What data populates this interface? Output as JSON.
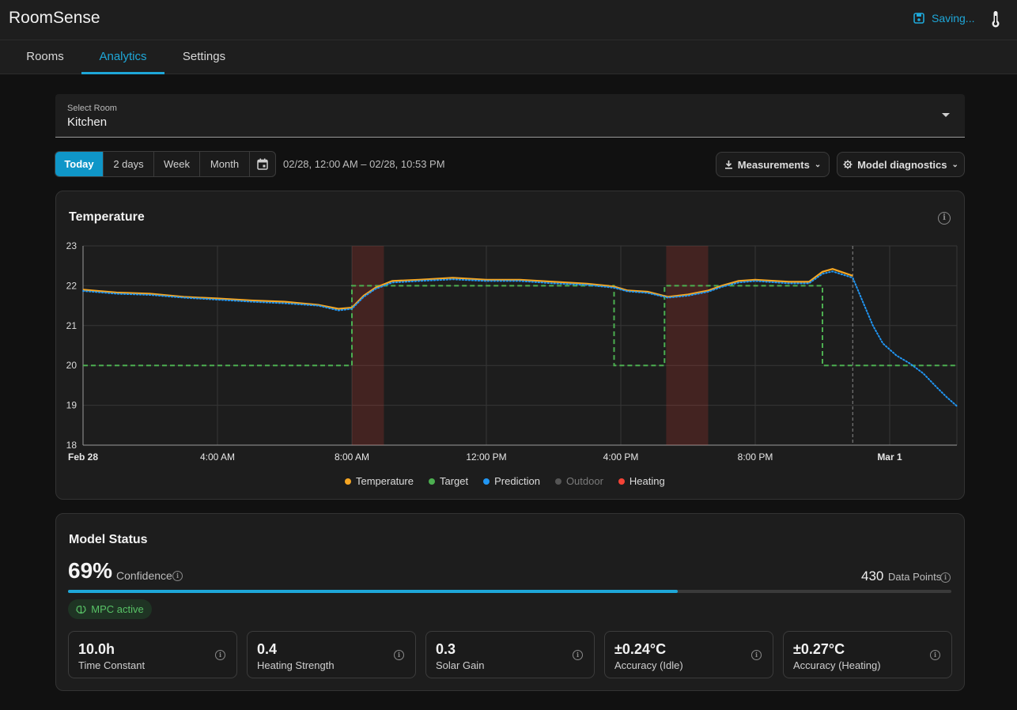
{
  "app": {
    "title": "RoomSense",
    "saving_label": "Saving...",
    "saving_icon": "save-icon",
    "header_icon": "thermometer-icon",
    "accent": "#1ea7d8"
  },
  "nav": {
    "tabs": [
      {
        "label": "Rooms"
      },
      {
        "label": "Analytics",
        "active": true
      },
      {
        "label": "Settings"
      }
    ]
  },
  "room_select": {
    "label": "Select Room",
    "value": "Kitchen"
  },
  "range": {
    "buttons": [
      {
        "label": "Today",
        "active": true
      },
      {
        "label": "2 days"
      },
      {
        "label": "Week"
      },
      {
        "label": "Month"
      }
    ],
    "calendar_icon": "calendar-icon",
    "date_range": "02/28, 12:00 AM – 02/28, 10:53 PM"
  },
  "actions": {
    "measurements": "Measurements",
    "diagnostics": "Model diagnostics"
  },
  "temperature_card": {
    "title": "Temperature",
    "legend": [
      {
        "label": "Temperature",
        "color": "#f5a623"
      },
      {
        "label": "Target",
        "color": "#4caf50"
      },
      {
        "label": "Prediction",
        "color": "#2196f3"
      },
      {
        "label": "Outdoor",
        "color": "#555555",
        "muted": true
      },
      {
        "label": "Heating",
        "color": "#f44336"
      }
    ]
  },
  "chart_data": {
    "type": "line",
    "ylim": [
      18,
      23
    ],
    "yticks": [
      "18",
      "19",
      "20",
      "21",
      "22",
      "23"
    ],
    "xlim": [
      0,
      26
    ],
    "xticks": [
      {
        "x": 0,
        "label": "Feb 28",
        "bold": true
      },
      {
        "x": 4,
        "label": "4:00 AM"
      },
      {
        "x": 8,
        "label": "8:00 AM"
      },
      {
        "x": 12,
        "label": "12:00 PM"
      },
      {
        "x": 16,
        "label": "4:00 PM"
      },
      {
        "x": 20,
        "label": "8:00 PM"
      },
      {
        "x": 24,
        "label": "Mar 1",
        "bold": true
      }
    ],
    "now_x": 22.9,
    "heating_periods": [
      [
        8.0,
        8.95
      ],
      [
        17.35,
        18.6
      ]
    ],
    "series": [
      {
        "name": "Temperature",
        "color": "#f5a623",
        "style": "solid",
        "points": [
          [
            0,
            21.9
          ],
          [
            1,
            21.83
          ],
          [
            2,
            21.8
          ],
          [
            3,
            21.72
          ],
          [
            4,
            21.68
          ],
          [
            5,
            21.63
          ],
          [
            6,
            21.6
          ],
          [
            7,
            21.52
          ],
          [
            7.6,
            21.42
          ],
          [
            8,
            21.45
          ],
          [
            8.35,
            21.75
          ],
          [
            8.7,
            21.95
          ],
          [
            9.2,
            22.12
          ],
          [
            10,
            22.15
          ],
          [
            11,
            22.2
          ],
          [
            12,
            22.15
          ],
          [
            13,
            22.15
          ],
          [
            14,
            22.1
          ],
          [
            15,
            22.05
          ],
          [
            15.8,
            21.98
          ],
          [
            16.2,
            21.88
          ],
          [
            16.8,
            21.85
          ],
          [
            17.4,
            21.72
          ],
          [
            18,
            21.78
          ],
          [
            18.6,
            21.88
          ],
          [
            19,
            22.0
          ],
          [
            19.5,
            22.12
          ],
          [
            20,
            22.15
          ],
          [
            21,
            22.1
          ],
          [
            21.6,
            22.1
          ],
          [
            22.0,
            22.35
          ],
          [
            22.3,
            22.42
          ],
          [
            22.9,
            22.25
          ]
        ]
      },
      {
        "name": "Target",
        "color": "#4caf50",
        "style": "dashed",
        "step": true,
        "points": [
          [
            0,
            20
          ],
          [
            8.0,
            20
          ],
          [
            8.0,
            22
          ],
          [
            15.8,
            22
          ],
          [
            15.8,
            20
          ],
          [
            17.3,
            20
          ],
          [
            17.3,
            22
          ],
          [
            22.0,
            22
          ],
          [
            22.0,
            20
          ],
          [
            26,
            20
          ]
        ]
      },
      {
        "name": "Prediction",
        "color": "#2196f3",
        "style": "dotted",
        "points": [
          [
            0,
            21.87
          ],
          [
            1,
            21.8
          ],
          [
            2,
            21.77
          ],
          [
            3,
            21.7
          ],
          [
            4,
            21.65
          ],
          [
            5,
            21.6
          ],
          [
            6,
            21.56
          ],
          [
            7,
            21.5
          ],
          [
            7.6,
            21.38
          ],
          [
            8,
            21.42
          ],
          [
            8.35,
            21.72
          ],
          [
            8.7,
            21.92
          ],
          [
            9.2,
            22.08
          ],
          [
            10,
            22.12
          ],
          [
            11,
            22.16
          ],
          [
            12,
            22.12
          ],
          [
            13,
            22.12
          ],
          [
            14,
            22.06
          ],
          [
            15,
            22.02
          ],
          [
            15.8,
            21.95
          ],
          [
            16.2,
            21.86
          ],
          [
            16.8,
            21.82
          ],
          [
            17.4,
            21.7
          ],
          [
            18,
            21.75
          ],
          [
            18.6,
            21.85
          ],
          [
            19,
            21.97
          ],
          [
            19.5,
            22.08
          ],
          [
            20,
            22.12
          ],
          [
            21,
            22.06
          ],
          [
            21.6,
            22.06
          ],
          [
            22.0,
            22.3
          ],
          [
            22.3,
            22.36
          ],
          [
            22.9,
            22.2
          ],
          [
            23.2,
            21.6
          ],
          [
            23.5,
            21.0
          ],
          [
            23.8,
            20.55
          ],
          [
            24.2,
            20.25
          ],
          [
            24.6,
            20.05
          ],
          [
            25.0,
            19.8
          ],
          [
            25.4,
            19.45
          ],
          [
            25.7,
            19.2
          ],
          [
            26,
            18.98
          ]
        ]
      },
      {
        "name": "Heating",
        "color": "#f44336",
        "style": "band"
      }
    ]
  },
  "model_status": {
    "title": "Model Status",
    "confidence_pct": "69%",
    "confidence_value": 0.69,
    "confidence_label": "Confidence",
    "data_points": "430",
    "data_points_label": "Data Points",
    "mpc_label": "MPC active",
    "metrics": [
      {
        "value": "10.0h",
        "label": "Time Constant"
      },
      {
        "value": "0.4",
        "label": "Heating Strength"
      },
      {
        "value": "0.3",
        "label": "Solar Gain"
      },
      {
        "value": "±0.24°C",
        "label": "Accuracy (Idle)"
      },
      {
        "value": "±0.27°C",
        "label": "Accuracy (Heating)"
      }
    ]
  }
}
